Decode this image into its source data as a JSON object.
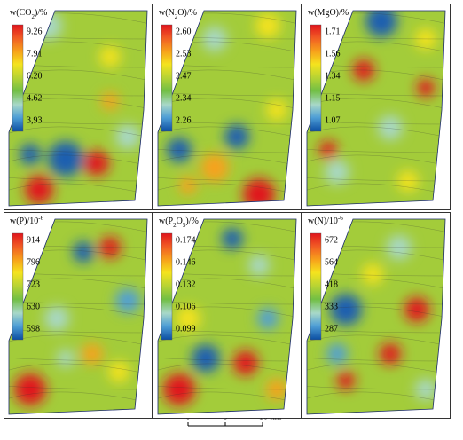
{
  "panels": [
    {
      "title": [
        {
          "text": "w(CO"
        },
        {
          "text": "2",
          "sub": true
        },
        {
          "text": ")/%"
        }
      ],
      "legend": [
        "9.26",
        "7.91",
        "6.20",
        "4.62",
        "3,93"
      ]
    },
    {
      "title": [
        {
          "text": "w(N"
        },
        {
          "text": "2",
          "sub": true
        },
        {
          "text": "O)/%"
        }
      ],
      "legend": [
        "2.60",
        "2.53",
        "2.47",
        "2.34",
        "2.26"
      ]
    },
    {
      "title": [
        {
          "text": "w(MgO)/%"
        }
      ],
      "legend": [
        "1.71",
        "1.56",
        "1.34",
        "1.15",
        "1.07"
      ]
    },
    {
      "title": [
        {
          "text": "w(P)/10"
        },
        {
          "text": "-6",
          "sup": true
        }
      ],
      "legend": [
        "914",
        "796",
        "723",
        "630",
        "598"
      ]
    },
    {
      "title": [
        {
          "text": "w(P"
        },
        {
          "text": "2",
          "sub": true
        },
        {
          "text": "O"
        },
        {
          "text": "5",
          "sub": true
        },
        {
          "text": ")/%"
        }
      ],
      "legend": [
        "0.174",
        "0.146",
        "0.132",
        "0.106",
        "0.099"
      ]
    },
    {
      "title": [
        {
          "text": "w(N)/10"
        },
        {
          "text": "-6",
          "sup": true
        }
      ],
      "legend": [
        "672",
        "564",
        "418",
        "333",
        "287"
      ]
    }
  ],
  "scale_bar": {
    "labels": [
      "0",
      "5",
      "10 km"
    ]
  }
}
